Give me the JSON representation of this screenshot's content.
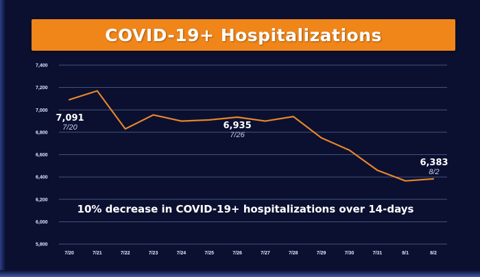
{
  "chart_data": {
    "type": "line",
    "title": "COVID-19+ Hospitalizations",
    "xlabel": "",
    "ylabel": "",
    "categories": [
      "7/20",
      "7/21",
      "7/22",
      "7/23",
      "7/24",
      "7/25",
      "7/26",
      "7/27",
      "7/28",
      "7/29",
      "7/30",
      "7/31",
      "8/1",
      "8/2"
    ],
    "series": [
      {
        "values": [
          7091,
          7170,
          6830,
          6955,
          6900,
          6910,
          6935,
          6900,
          6940,
          6750,
          6640,
          6460,
          6365,
          6383
        ]
      }
    ],
    "ylim": [
      5800,
      7400
    ],
    "yticks": [
      "7,400",
      "7,200",
      "7,000",
      "6,800",
      "6,600",
      "6,400",
      "6,200",
      "6,000",
      "5,800"
    ],
    "grid": true,
    "line_color": "#e8862a",
    "callouts": [
      {
        "index": 0,
        "value_label": "7,091",
        "date_label": "7/20"
      },
      {
        "index": 6,
        "value_label": "6,935",
        "date_label": "7/26"
      },
      {
        "index": 13,
        "value_label": "6,383",
        "date_label": "8/2"
      }
    ],
    "annotation": "10% decrease in COVID-19+ hospitalizations over 14-days"
  },
  "colors": {
    "background": "#0b1030",
    "title_bar": "#f0861a",
    "grid": "#5a6a9a"
  }
}
